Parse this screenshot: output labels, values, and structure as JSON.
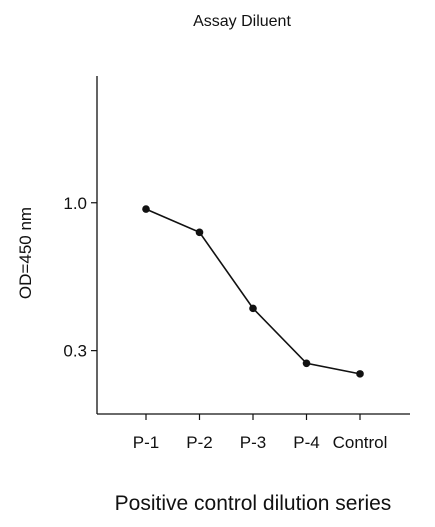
{
  "chart_data": {
    "type": "line",
    "title": "Assay Diluent",
    "xlabel": "Positive control dilution series",
    "ylabel": "OD=450 nm",
    "categories": [
      "P-1",
      "P-2",
      "P-3",
      "P-4",
      "Control"
    ],
    "series": [
      {
        "values": [
          0.97,
          0.86,
          0.5,
          0.24,
          0.19
        ]
      }
    ],
    "yticks": [
      {
        "value": 0.3,
        "label": "0.3"
      },
      {
        "value": 1.0,
        "label": "1.0"
      }
    ],
    "ylim": [
      0.0,
      1.6
    ],
    "grid": false,
    "legend": "none",
    "colors": {
      "line": "#111111",
      "marker": "#111111",
      "axis": "#111111"
    }
  }
}
